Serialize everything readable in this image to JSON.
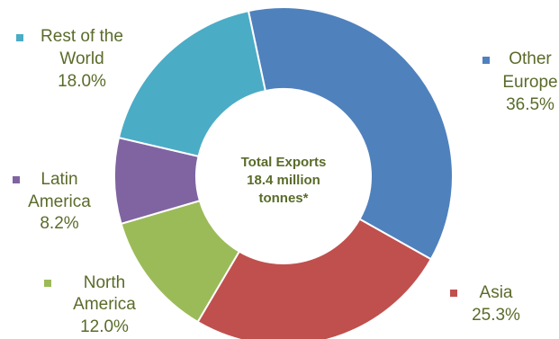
{
  "chart_data": {
    "type": "pie",
    "donut": true,
    "center_label": [
      "Total Exports",
      "18.4 million",
      "tonnes*"
    ],
    "slices": [
      {
        "name_lines": [
          "Other",
          "Europe"
        ],
        "value": 36.5,
        "value_label": "36.5%",
        "color": "#4F81BD"
      },
      {
        "name_lines": [
          "Asia"
        ],
        "value": 25.3,
        "value_label": "25.3%",
        "color": "#C0504D"
      },
      {
        "name_lines": [
          "North",
          "America"
        ],
        "value": 12.0,
        "value_label": "12.0%",
        "color": "#9BBB59"
      },
      {
        "name_lines": [
          "Latin",
          "America"
        ],
        "value": 8.2,
        "value_label": "8.2%",
        "color": "#8064A2"
      },
      {
        "name_lines": [
          "Rest of the",
          "World"
        ],
        "value": 18.0,
        "value_label": "18.0%",
        "color": "#4BACC6"
      }
    ],
    "text_color": "#5a6b2a"
  }
}
